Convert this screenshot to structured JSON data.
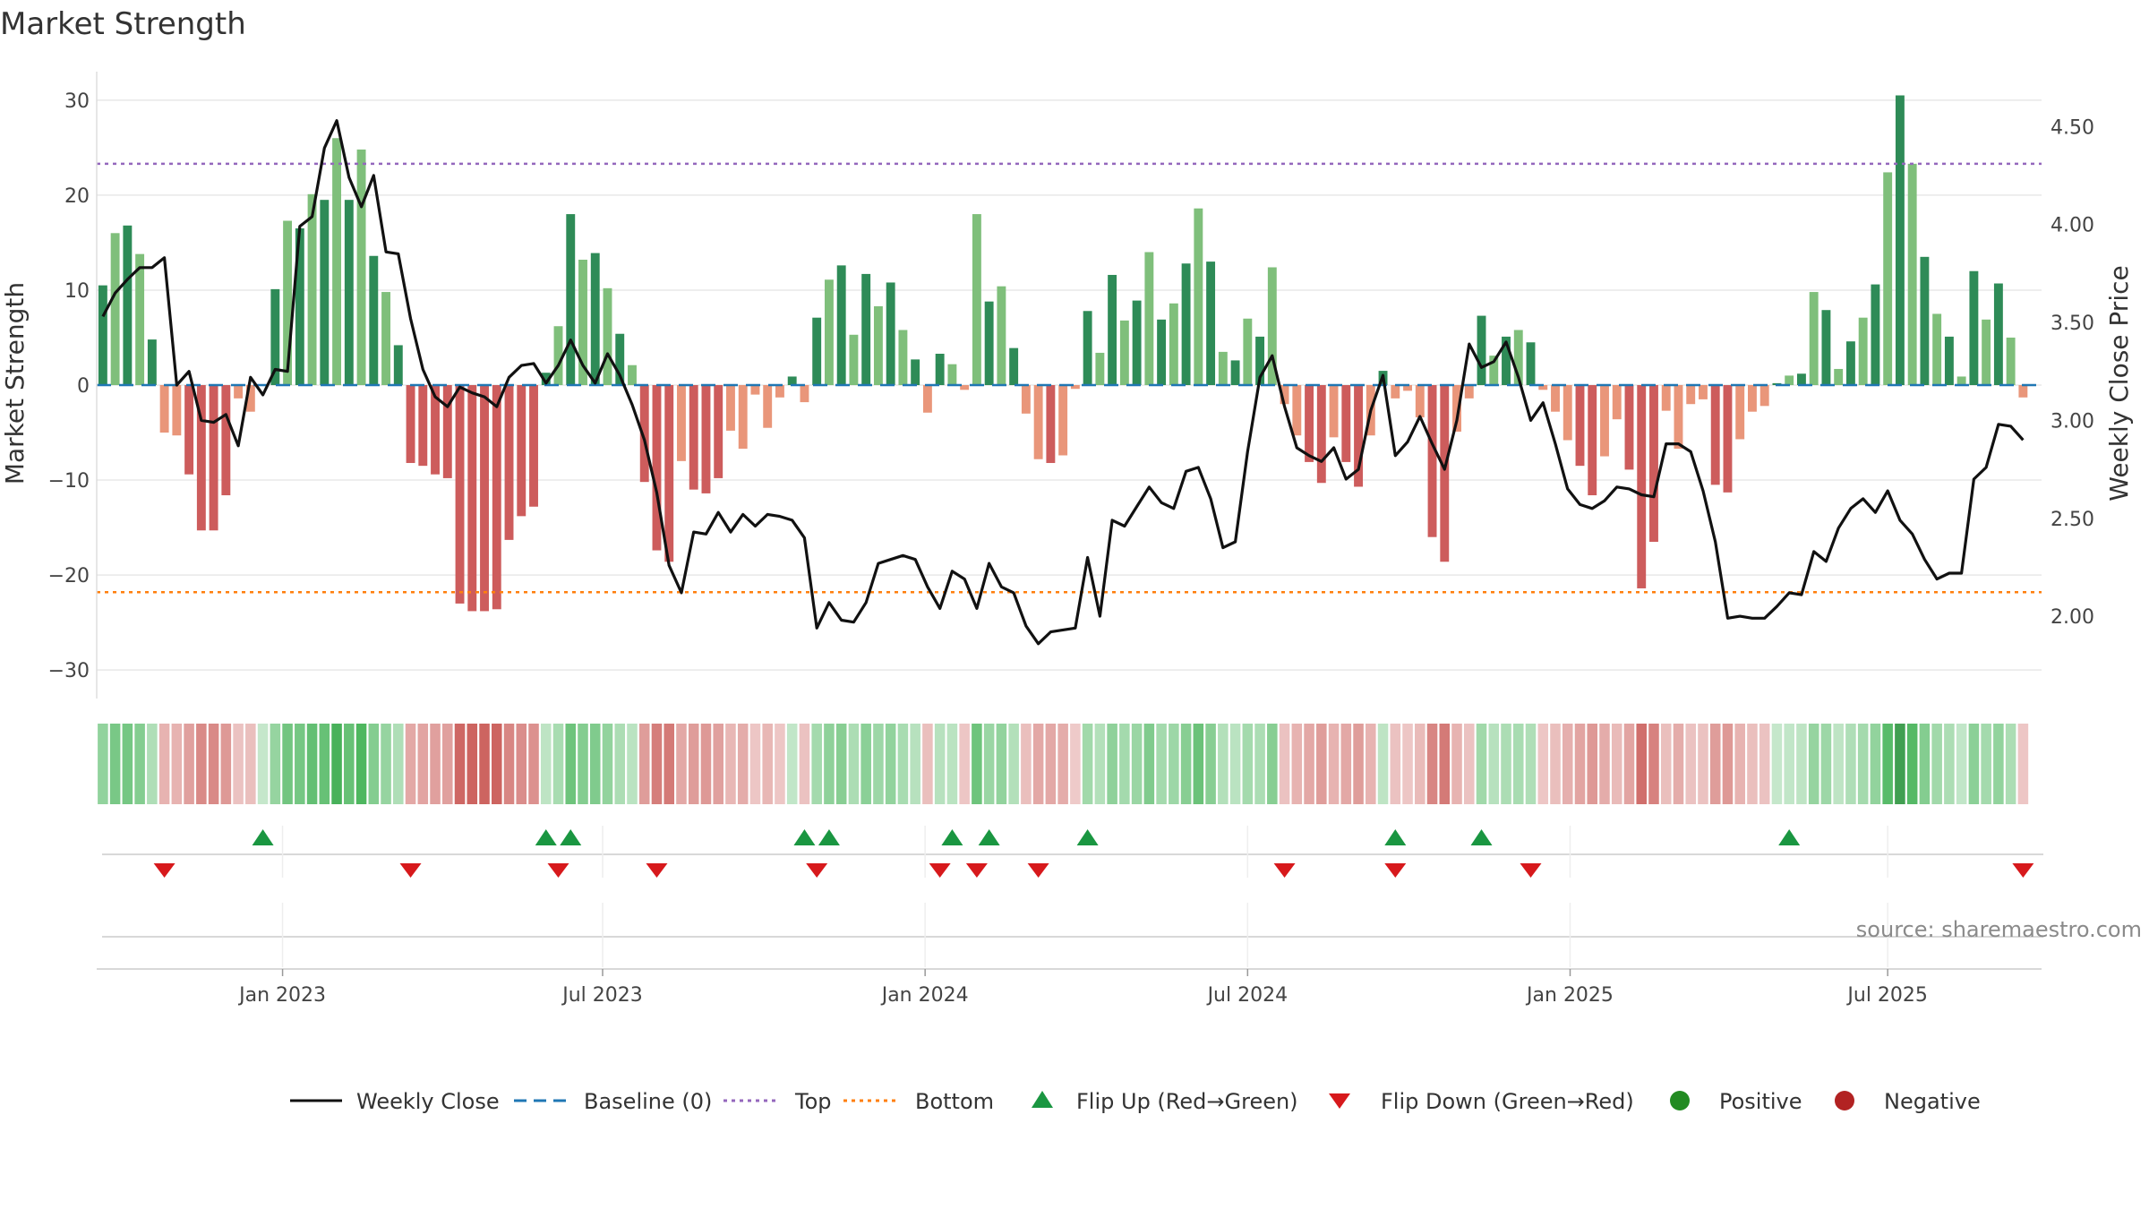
{
  "chart_data": {
    "type": "bar",
    "title": "Market Strength",
    "ylabel_left": "Market Strength",
    "ylabel_right": "Weekly Close Price",
    "ylim_left": [
      -33,
      33
    ],
    "ylim_right": [
      1.58,
      4.78
    ],
    "yticks_left": [
      "30",
      "20",
      "10",
      "0",
      "−10",
      "−20",
      "−30"
    ],
    "yticks_left_values": [
      30,
      20,
      10,
      0,
      -10,
      -20,
      -30
    ],
    "yticks_right": [
      "4.50",
      "4.00",
      "3.50",
      "3.00",
      "2.50",
      "2.00"
    ],
    "yticks_right_values": [
      4.5,
      4.0,
      3.5,
      3.0,
      2.5,
      2.0
    ],
    "x_start_week": 0,
    "x_end_week": 157,
    "xticks": [
      "Jan 2023",
      "Jul 2023",
      "Jan 2024",
      "Jul 2024",
      "Jan 2025",
      "Jul 2025"
    ],
    "xticks_week": [
      14.6,
      40.6,
      66.8,
      93.0,
      119.2,
      145.0
    ],
    "top_line": 23.3,
    "bottom_line": -21.8,
    "baseline": 0,
    "market_strength": [
      10.5,
      16,
      16.8,
      13.8,
      4.8,
      -5,
      -5.3,
      -9.4,
      -15.3,
      -15.3,
      -11.6,
      -1.4,
      -2.8,
      0,
      10.1,
      17.3,
      16.5,
      20.1,
      19.5,
      26,
      19.5,
      24.8,
      13.6,
      9.8,
      4.2,
      -8.2,
      -8.5,
      -9.4,
      -9.8,
      -23,
      -23.8,
      -23.8,
      -23.6,
      -16.3,
      -13.8,
      -12.8,
      1.3,
      6.2,
      18,
      13.2,
      13.9,
      10.2,
      5.4,
      2.1,
      -10.2,
      -17.4,
      -18.6,
      -8,
      -11,
      -11.4,
      -9.8,
      -4.8,
      -6.7,
      -1,
      -4.5,
      -1.3,
      0.9,
      -1.8,
      7.1,
      11.1,
      12.6,
      5.3,
      11.7,
      8.3,
      10.8,
      5.8,
      2.7,
      -2.9,
      3.3,
      2.2,
      -0.5,
      18,
      8.8,
      10.4,
      3.9,
      -3,
      -7.8,
      -8.2,
      -7.4,
      -0.4,
      7.8,
      3.4,
      11.6,
      6.8,
      8.9,
      14,
      6.9,
      8.6,
      12.8,
      18.6,
      13,
      3.5,
      2.6,
      7,
      5.1,
      12.4,
      -2,
      -5.3,
      -8.1,
      -10.3,
      -5.5,
      -8.1,
      -10.7,
      -5.3,
      1.5,
      -1.4,
      -0.6,
      -3.4,
      -16,
      -18.6,
      -4.9,
      -1.4,
      7.3,
      3.1,
      5.1,
      5.8,
      4.5,
      -0.5,
      -2.8,
      -5.8,
      -8.5,
      -11.6,
      -7.5,
      -3.6,
      -8.9,
      -21.4,
      -16.5,
      -2.7,
      -6.7,
      -2,
      -1.5,
      -10.5,
      -11.3,
      -5.7,
      -2.8,
      -2.2,
      0.2,
      1,
      1.2,
      9.8,
      7.9,
      1.7,
      4.6,
      7.1,
      10.6,
      22.4,
      30.5,
      23.3,
      13.5,
      7.5,
      5.1,
      0.9,
      12,
      6.9,
      10.7,
      5,
      -1.3
    ],
    "weekly_close": [
      3.53,
      3.65,
      3.72,
      3.78,
      3.78,
      3.83,
      3.18,
      3.25,
      3.0,
      2.99,
      3.03,
      2.87,
      3.22,
      3.13,
      3.26,
      3.25,
      3.99,
      4.04,
      4.39,
      4.53,
      4.24,
      4.09,
      4.25,
      3.86,
      3.85,
      3.52,
      3.26,
      3.12,
      3.07,
      3.17,
      3.14,
      3.12,
      3.07,
      3.22,
      3.28,
      3.29,
      3.19,
      3.28,
      3.41,
      3.28,
      3.19,
      3.34,
      3.23,
      3.08,
      2.9,
      2.63,
      2.26,
      2.12,
      2.43,
      2.42,
      2.53,
      2.43,
      2.52,
      2.46,
      2.52,
      2.51,
      2.49,
      2.4,
      1.94,
      2.07,
      1.98,
      1.97,
      2.07,
      2.27,
      2.29,
      2.31,
      2.29,
      2.15,
      2.04,
      2.23,
      2.19,
      2.04,
      2.27,
      2.15,
      2.12,
      1.95,
      1.86,
      1.92,
      1.93,
      1.94,
      2.3,
      2.0,
      2.49,
      2.46,
      2.56,
      2.66,
      2.58,
      2.55,
      2.74,
      2.76,
      2.6,
      2.35,
      2.38,
      2.84,
      3.22,
      3.33,
      3.07,
      2.86,
      2.82,
      2.79,
      2.86,
      2.7,
      2.75,
      3.05,
      3.23,
      2.82,
      2.89,
      3.02,
      2.88,
      2.75,
      3.0,
      3.39,
      3.27,
      3.3,
      3.4,
      3.22,
      3.0,
      3.09,
      2.88,
      2.65,
      2.57,
      2.55,
      2.59,
      2.66,
      2.65,
      2.62,
      2.61,
      2.88,
      2.88,
      2.84,
      2.64,
      2.38,
      1.99,
      2.0,
      1.99,
      1.99,
      2.05,
      2.12,
      2.11,
      2.33,
      2.28,
      2.45,
      2.55,
      2.6,
      2.53,
      2.64,
      2.49,
      2.42,
      2.29,
      2.19,
      2.22,
      2.22,
      2.7,
      2.76,
      2.98,
      2.97,
      2.9
    ],
    "flip_up_weeks": [
      13,
      36,
      38,
      57,
      59,
      69,
      72,
      80,
      105,
      112,
      137
    ],
    "flip_down_weeks": [
      5,
      25,
      37,
      45,
      58,
      68,
      71,
      76,
      96,
      105,
      116,
      156
    ],
    "legend": [
      "Weekly Close",
      "Baseline (0)",
      "Top",
      "Bottom",
      "Flip Up (Red→Green)",
      "Flip Down (Green→Red)",
      "Positive",
      "Negative"
    ],
    "legend_placement": "bottom",
    "colors": {
      "pos_strong": "#2e8b57",
      "pos_light": "#7fbf7b",
      "neg_strong": "#cd5c5c",
      "neg_light": "#e9967a",
      "close_line": "#111111",
      "baseline": "#1f77b4",
      "top": "#9467bd",
      "bottom": "#ff7f0e",
      "flip_up": "#1a9641",
      "flip_down": "#d7191c",
      "positive": "#228b22",
      "negative": "#b22222",
      "grid": "#e8e8e8"
    }
  },
  "source_text": "source: sharemaestro.com"
}
